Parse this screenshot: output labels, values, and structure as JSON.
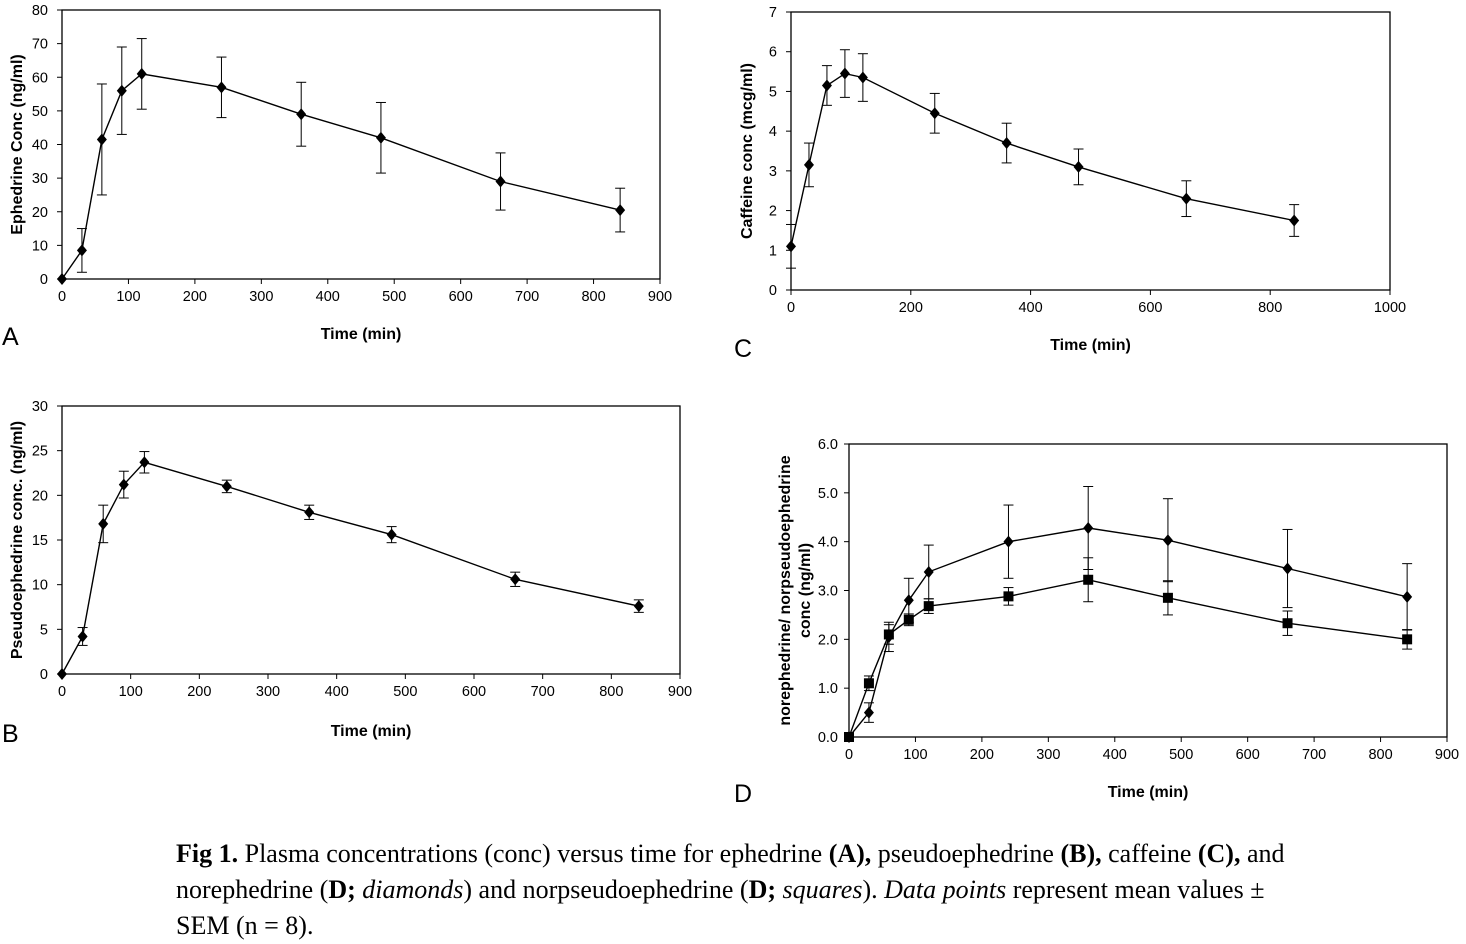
{
  "chart_data": [
    {
      "panel": "A",
      "type": "line",
      "xlabel": "Time (min)",
      "ylabel": "Ephedrine Conc (ng/ml)",
      "xlim": [
        0,
        900
      ],
      "ylim": [
        0,
        80
      ],
      "xticks": [
        "0",
        "100",
        "200",
        "300",
        "400",
        "500",
        "600",
        "700",
        "800",
        "900"
      ],
      "yticks": [
        "0",
        "10",
        "20",
        "30",
        "40",
        "50",
        "60",
        "70",
        "80"
      ],
      "series": [
        {
          "marker": "diamond",
          "x": [
            0,
            30,
            60,
            90,
            120,
            240,
            360,
            480,
            660,
            840
          ],
          "y": [
            0,
            8.5,
            41.5,
            56,
            61,
            57,
            49,
            42,
            29,
            20.5
          ],
          "err": [
            0,
            6.5,
            16.5,
            13,
            10.5,
            9,
            9.5,
            10.5,
            8.5,
            6.5
          ]
        }
      ]
    },
    {
      "panel": "B",
      "type": "line",
      "xlabel": "Time (min)",
      "ylabel": "Pseudoephedrine conc. (ng/ml)",
      "xlim": [
        0,
        900
      ],
      "ylim": [
        0,
        30
      ],
      "xticks": [
        "0",
        "100",
        "200",
        "300",
        "400",
        "500",
        "600",
        "700",
        "800",
        "900"
      ],
      "yticks": [
        "0",
        "5",
        "10",
        "15",
        "20",
        "25",
        "30"
      ],
      "series": [
        {
          "marker": "diamond",
          "x": [
            0,
            30,
            60,
            90,
            120,
            240,
            360,
            480,
            660,
            840
          ],
          "y": [
            0,
            4.2,
            16.8,
            21.2,
            23.7,
            21,
            18.1,
            15.6,
            10.6,
            7.6
          ],
          "err": [
            0,
            1,
            2.1,
            1.5,
            1.2,
            0.7,
            0.8,
            0.9,
            0.8,
            0.7
          ]
        }
      ]
    },
    {
      "panel": "C",
      "type": "line",
      "xlabel": "Time (min)",
      "ylabel": "Caffeine conc (mcg/ml)",
      "xlim": [
        0,
        1000
      ],
      "ylim": [
        0,
        7
      ],
      "xticks": [
        "0",
        "200",
        "400",
        "600",
        "800",
        "1000"
      ],
      "yticks": [
        "0",
        "1",
        "2",
        "3",
        "4",
        "5",
        "6",
        "7"
      ],
      "series": [
        {
          "marker": "diamond",
          "x": [
            0,
            30,
            60,
            90,
            120,
            240,
            360,
            480,
            660,
            840
          ],
          "y": [
            1.1,
            3.15,
            5.15,
            5.45,
            5.35,
            4.45,
            3.7,
            3.1,
            2.3,
            1.75
          ],
          "err": [
            0.55,
            0.55,
            0.5,
            0.6,
            0.6,
            0.5,
            0.5,
            0.45,
            0.45,
            0.4
          ]
        }
      ]
    },
    {
      "panel": "D",
      "type": "line",
      "xlabel": "Time (min)",
      "ylabel": "norephedrine/ norpseudoephedrine conc (ng/ml)",
      "xlim": [
        0,
        900
      ],
      "ylim": [
        0,
        6
      ],
      "xticks": [
        "0",
        "100",
        "200",
        "300",
        "400",
        "500",
        "600",
        "700",
        "800",
        "900"
      ],
      "yticks": [
        "0.0",
        "1.0",
        "2.0",
        "3.0",
        "4.0",
        "5.0",
        "6.0"
      ],
      "series": [
        {
          "marker": "diamond",
          "x": [
            0,
            30,
            60,
            90,
            120,
            240,
            360,
            480,
            660,
            840
          ],
          "y": [
            0,
            0.5,
            2.05,
            2.8,
            3.38,
            4.0,
            4.28,
            4.03,
            3.45,
            2.87
          ],
          "err": [
            0,
            0.2,
            0.3,
            0.45,
            0.55,
            0.75,
            0.85,
            0.85,
            0.8,
            0.68
          ]
        },
        {
          "marker": "square",
          "x": [
            0,
            30,
            60,
            90,
            120,
            240,
            360,
            480,
            660,
            840
          ],
          "y": [
            0,
            1.1,
            2.1,
            2.4,
            2.68,
            2.88,
            3.22,
            2.85,
            2.33,
            2.0
          ],
          "err": [
            0,
            0.15,
            0.2,
            0.12,
            0.15,
            0.18,
            0.45,
            0.35,
            0.25,
            0.2
          ]
        }
      ]
    }
  ],
  "panels": {
    "a": "A",
    "b": "B",
    "c": "C",
    "d": "D"
  },
  "caption": {
    "fig": "Fig 1.",
    "t1": " Plasma concentrations (conc) versus time for ephedrine ",
    "a": "(A),",
    "t2": " pseudoephedrine ",
    "b": "(B),",
    "t3": " caffeine ",
    "c": "(C),",
    "t4": " and norephedrine (",
    "d1": "D;",
    "t5": " ",
    "diamonds": "diamonds",
    "t6": ") and norpseudoephedrine (",
    "d2": "D;",
    "t7": " ",
    "squares": "squares",
    "t8": "). ",
    "datapoints": "Data points",
    "t9": " represent mean values ± SEM (n = 8)."
  }
}
